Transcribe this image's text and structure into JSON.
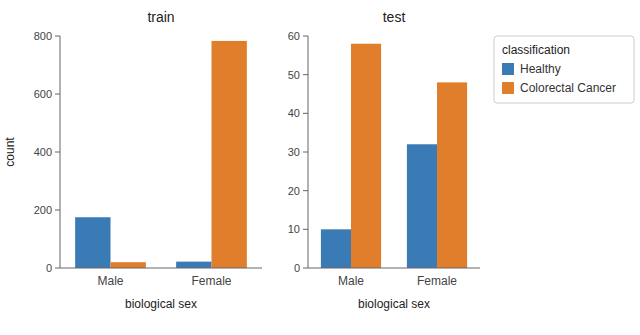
{
  "chart_data": [
    {
      "type": "bar",
      "title": "train",
      "x_label": "biological sex",
      "y_label": "count",
      "categories": [
        "Male",
        "Female"
      ],
      "series": [
        {
          "name": "Healthy",
          "color": "#3a7ab5",
          "values": [
            175,
            22
          ]
        },
        {
          "name": "Colorectal Cancer",
          "color": "#e07e2c",
          "values": [
            20,
            783
          ]
        }
      ],
      "ylim": [
        0,
        800
      ],
      "yticks": [
        0,
        200,
        400,
        600,
        800
      ],
      "grid": false
    },
    {
      "type": "bar",
      "title": "test",
      "x_label": "biological sex",
      "categories": [
        "Male",
        "Female"
      ],
      "series": [
        {
          "name": "Healthy",
          "color": "#3a7ab5",
          "values": [
            10,
            32
          ]
        },
        {
          "name": "Colorectal Cancer",
          "color": "#e07e2c",
          "values": [
            58,
            48
          ]
        }
      ],
      "ylim": [
        0,
        60
      ],
      "yticks": [
        0,
        10,
        20,
        30,
        40,
        50,
        60
      ],
      "grid": false,
      "legend": "right",
      "legend_title": "classification"
    }
  ]
}
